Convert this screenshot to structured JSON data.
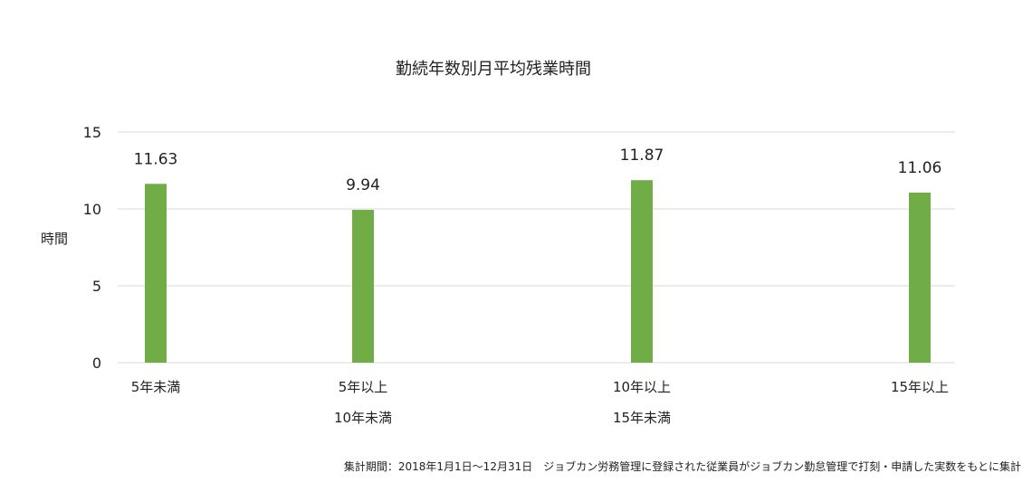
{
  "chart_data": {
    "type": "bar",
    "title": "勤続年数別月平均残業時間",
    "ylabel": "時間",
    "xlabel": "",
    "ylim": [
      0,
      15
    ],
    "yticks": [
      0,
      5,
      10,
      15
    ],
    "grid": true,
    "bar_color": "#70ad47",
    "gridline_color": "#d9d9d9",
    "categories": [
      [
        "5年未満"
      ],
      [
        "5年以上",
        "10年未満"
      ],
      [
        "10年以上",
        "15年未満"
      ],
      [
        "15年以上"
      ]
    ],
    "values": [
      11.63,
      9.94,
      11.87,
      11.06
    ],
    "value_labels": [
      "11.63",
      "9.94",
      "11.87",
      "11.06"
    ]
  },
  "footnote": "集計期間：2018年1月1日～12月31日　ジョブカン労務管理に登録された従業員がジョブカン勤怠管理で打刻・申請した実数をもとに集計"
}
